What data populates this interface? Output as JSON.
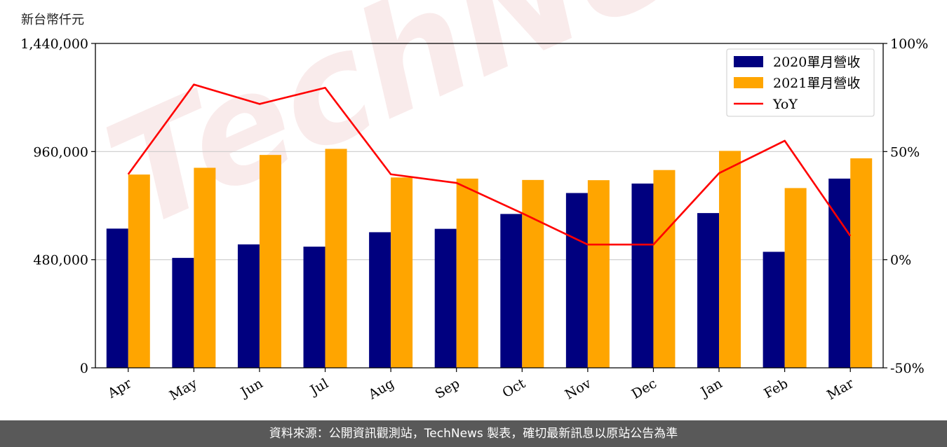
{
  "unit_label": "新台幣仟元",
  "watermark": "TechNews",
  "footer": "資料來源：公開資訊觀測站，TechNews 製表，確切最新訊息以原站公告為準",
  "colors": {
    "s2020": "#00007f",
    "s2021": "#ffa500",
    "yoy": "#ff0000",
    "grid": "#cccccc"
  },
  "chart_data": {
    "type": "bar",
    "categories": [
      "Apr",
      "May",
      "Jun",
      "Jul",
      "Aug",
      "Sep",
      "Oct",
      "Nov",
      "Dec",
      "Jan",
      "Feb",
      "Mar"
    ],
    "series": [
      {
        "name": "2020單月營收",
        "values": [
          618000,
          488000,
          548000,
          538000,
          602000,
          617000,
          683000,
          776000,
          818000,
          687000,
          515000,
          840000
        ]
      },
      {
        "name": "2021單月營收",
        "values": [
          858000,
          888000,
          945000,
          972000,
          845000,
          840000,
          834000,
          833000,
          878000,
          963000,
          798000,
          930000
        ]
      }
    ],
    "line_series": {
      "name": "YoY",
      "values": [
        39.5,
        81,
        72,
        79.5,
        39.5,
        35.5,
        21.5,
        7,
        7,
        40,
        55,
        11
      ]
    },
    "ylim": [
      0,
      1440000
    ],
    "yticks": [
      "0",
      "480,000",
      "960,000",
      "1,440,000"
    ],
    "y2lim": [
      -50,
      100
    ],
    "y2ticks": [
      "-50%",
      "0%",
      "50%",
      "100%"
    ],
    "grid": true,
    "legend_position": "top-right"
  }
}
